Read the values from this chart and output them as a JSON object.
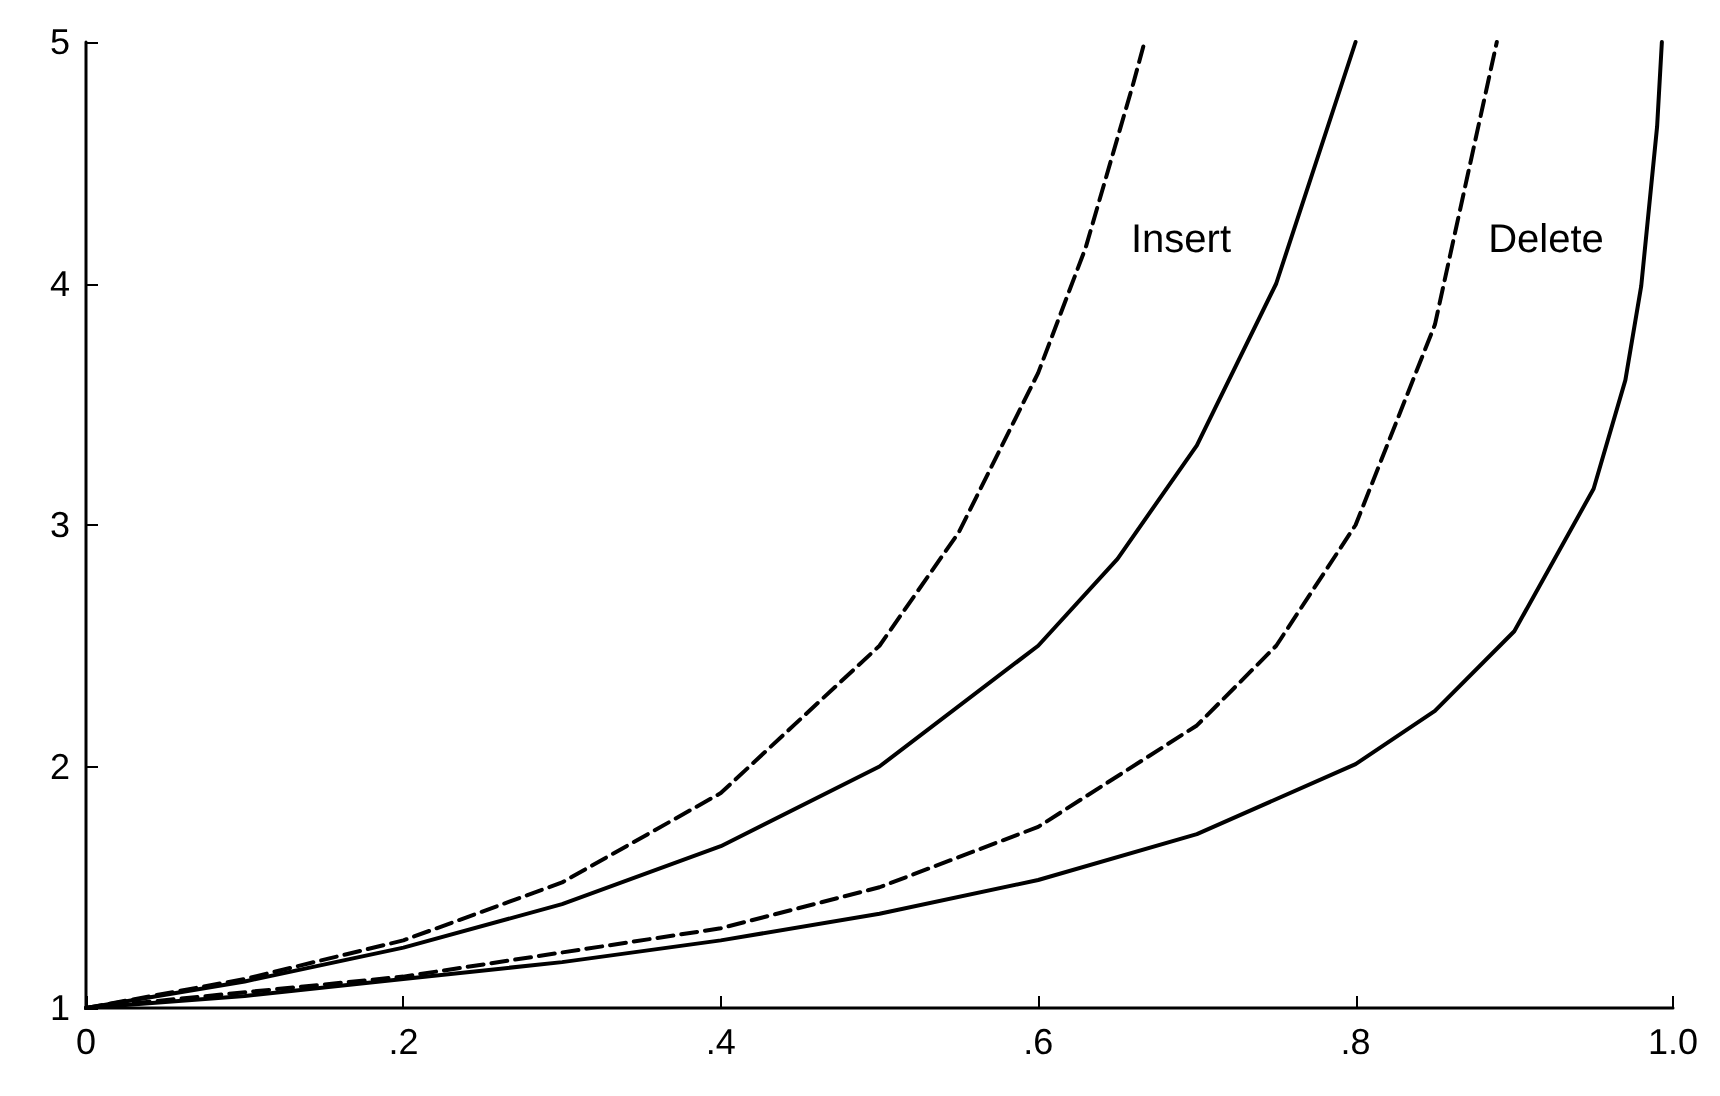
{
  "chart_data": {
    "type": "line",
    "xlim": [
      0,
      1
    ],
    "ylim": [
      1,
      5
    ],
    "xticks": [
      0,
      {
        "value": 0.2,
        "label": ".2"
      },
      {
        "value": 0.4,
        "label": ".4"
      },
      {
        "value": 0.6,
        "label": ".6"
      },
      {
        "value": 0.8,
        "label": ".8"
      },
      {
        "value": 1,
        "label": "1.0"
      }
    ],
    "yticks": [
      1,
      2,
      3,
      4,
      5
    ],
    "grid": false,
    "marker": "none",
    "series": [
      {
        "color": "#000000",
        "line_style": "dashed",
        "x": [
          0,
          0.1,
          0.2,
          0.3,
          0.4,
          0.5,
          0.55,
          0.6,
          0.63,
          0.66,
          0.667
        ],
        "values": [
          1,
          1.12,
          1.28,
          1.52,
          1.89,
          2.5,
          2.97,
          3.63,
          4.15,
          4.83,
          5
        ]
      },
      {
        "color": "#000000",
        "line_style": "solid",
        "x": [
          0,
          0.1,
          0.2,
          0.3,
          0.4,
          0.5,
          0.6,
          0.65,
          0.7,
          0.75,
          0.8
        ],
        "values": [
          1,
          1.11,
          1.25,
          1.43,
          1.67,
          2,
          2.5,
          2.86,
          3.33,
          4,
          5
        ]
      },
      {
        "color": "#000000",
        "line_style": "dashed",
        "x": [
          0,
          0.2,
          0.4,
          0.5,
          0.6,
          0.7,
          0.75,
          0.8,
          0.85,
          0.889
        ],
        "values": [
          1,
          1.13,
          1.33,
          1.5,
          1.75,
          2.17,
          2.5,
          3,
          3.83,
          5
        ]
      },
      {
        "color": "#000000",
        "line_style": "solid",
        "x": [
          0,
          0.1,
          0.2,
          0.3,
          0.4,
          0.5,
          0.6,
          0.7,
          0.8,
          0.85,
          0.9,
          0.95,
          0.97,
          0.98,
          0.99,
          0.993
        ],
        "values": [
          1,
          1.05,
          1.12,
          1.19,
          1.28,
          1.39,
          1.53,
          1.72,
          2.01,
          2.23,
          2.56,
          3.15,
          3.6,
          3.99,
          4.65,
          5
        ]
      }
    ],
    "annotations": [
      "Insert",
      "Delete"
    ]
  }
}
